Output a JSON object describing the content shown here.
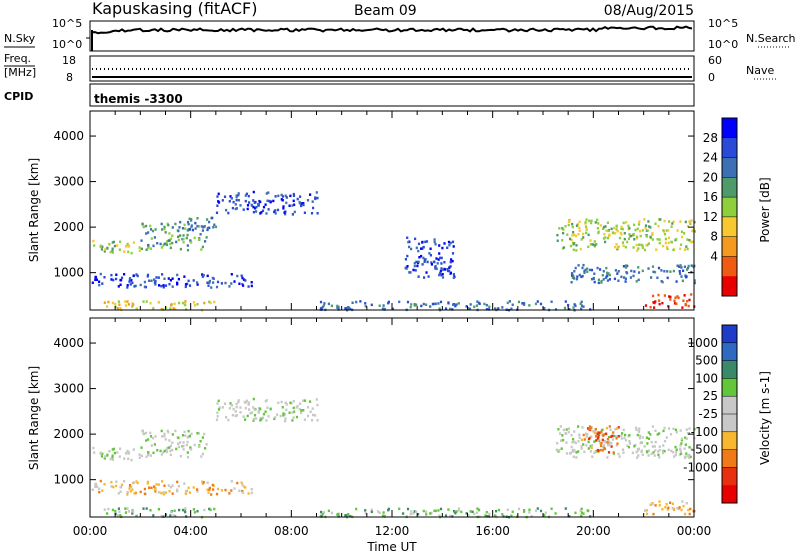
{
  "header": {
    "station": "Kapuskasing (fitACF)",
    "beam": "Beam 09",
    "date": "08/Aug/2015"
  },
  "noise_panel": {
    "left_label": "N.Sky",
    "right_label": "N.Search",
    "left_ticks": [
      "10^5",
      "10^0"
    ],
    "right_ticks": [
      "10^5",
      "10^0"
    ]
  },
  "freq_panel": {
    "left_label_1": "Freq.",
    "left_label_2": "[MHz]",
    "left_ticks": [
      "18",
      "8"
    ],
    "right_label": "Nave",
    "right_ticks": [
      "60",
      "0"
    ]
  },
  "cpid_panel": {
    "label": "CPID",
    "value": "themis -3300"
  },
  "chart_data": [
    {
      "type": "heatmap",
      "name": "power",
      "ylabel": "Slant Range [km]",
      "yticks": [
        "1000",
        "2000",
        "3000",
        "4000"
      ],
      "ylim": [
        180,
        4550
      ],
      "xlim": [
        0,
        24
      ],
      "colorbar_label": "Power [dB]",
      "colorbar_ticks": [
        "4",
        "8",
        "12",
        "16",
        "20",
        "24",
        "28"
      ],
      "colorbar_colors": [
        "#0000ff",
        "#2a4bd7",
        "#3c6fb4",
        "#4f9a6a",
        "#8ecf3c",
        "#f7c830",
        "#f39a1f",
        "#ef5b12",
        "#e80000"
      ],
      "features": [
        {
          "t": [
            0.0,
            2.0
          ],
          "r": [
            1450,
            1750
          ],
          "c": 4
        },
        {
          "t": [
            2.0,
            4.6
          ],
          "r": [
            1500,
            2100
          ],
          "c": 3
        },
        {
          "t": [
            0.0,
            6.5
          ],
          "r": [
            700,
            1000
          ],
          "c": 1
        },
        {
          "t": [
            0.5,
            5.0
          ],
          "r": [
            200,
            400
          ],
          "c": 5
        },
        {
          "t": [
            3.5,
            5.0
          ],
          "r": [
            1950,
            2250
          ],
          "c": 2
        },
        {
          "t": [
            5.0,
            9.0
          ],
          "r": [
            2300,
            2800
          ],
          "c": 1
        },
        {
          "t": [
            9.0,
            20.0
          ],
          "r": [
            200,
            400
          ],
          "c": 2
        },
        {
          "t": [
            12.5,
            14.5
          ],
          "r": [
            900,
            1800
          ],
          "c": 1
        },
        {
          "t": [
            18.5,
            24.0
          ],
          "r": [
            1500,
            2200
          ],
          "c": 4
        },
        {
          "t": [
            22.0,
            24.0
          ],
          "r": [
            250,
            550
          ],
          "c": 8
        },
        {
          "t": [
            19.0,
            24.0
          ],
          "r": [
            800,
            1200
          ],
          "c": 2
        }
      ]
    },
    {
      "type": "heatmap",
      "name": "velocity",
      "ylabel": "Slant Range [km]",
      "yticks": [
        "1000",
        "2000",
        "3000",
        "4000"
      ],
      "ylim": [
        180,
        4550
      ],
      "xlim": [
        0,
        24
      ],
      "colorbar_label": "Velocity [m s-1]",
      "colorbar_ticks": [
        "1000",
        "500",
        "100",
        "25",
        "-25",
        "-100",
        "-500",
        "-1000"
      ],
      "colorbar_colors": [
        "#1e3cc8",
        "#2d6ac0",
        "#3a8a6a",
        "#62c63a",
        "#c8c8c8",
        "#c8c8c8",
        "#f7b830",
        "#f07a18",
        "#e83010",
        "#e80000"
      ],
      "x_tick_labels": [
        "00:00",
        "04:00",
        "08:00",
        "12:00",
        "16:00",
        "20:00",
        "00:00"
      ],
      "xlabel": "Time UT",
      "features": [
        {
          "t": [
            0.0,
            2.0
          ],
          "r": [
            1450,
            1750
          ],
          "c": 4
        },
        {
          "t": [
            2.0,
            4.6
          ],
          "r": [
            1500,
            2100
          ],
          "c": 4
        },
        {
          "t": [
            0.0,
            6.5
          ],
          "r": [
            700,
            1000
          ],
          "c": 6
        },
        {
          "t": [
            0.5,
            5.0
          ],
          "r": [
            200,
            400
          ],
          "c": 3
        },
        {
          "t": [
            5.0,
            9.0
          ],
          "r": [
            2300,
            2800
          ],
          "c": 4
        },
        {
          "t": [
            9.0,
            20.0
          ],
          "r": [
            200,
            400
          ],
          "c": 3
        },
        {
          "t": [
            18.5,
            24.0
          ],
          "r": [
            1500,
            2200
          ],
          "c": 4
        },
        {
          "t": [
            19.5,
            21.0
          ],
          "r": [
            1600,
            2200
          ],
          "c": 7
        },
        {
          "t": [
            22.0,
            24.0
          ],
          "r": [
            250,
            550
          ],
          "c": 6
        }
      ]
    }
  ]
}
